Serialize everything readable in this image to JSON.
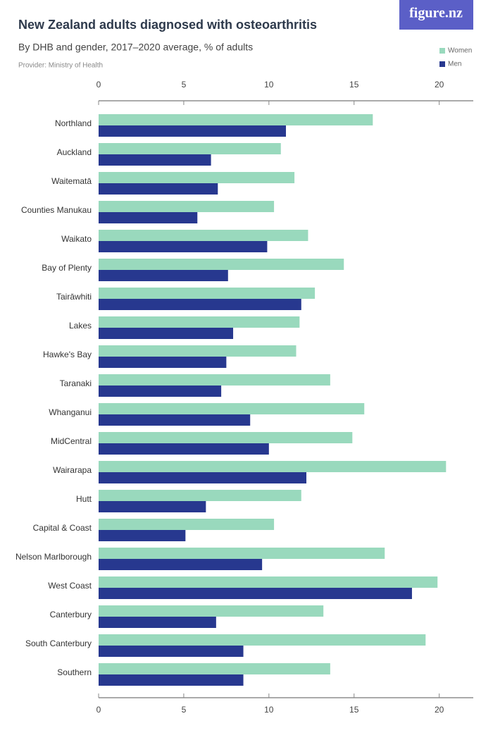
{
  "chart_data": {
    "type": "bar",
    "orientation": "horizontal",
    "title": "New Zealand adults diagnosed with osteoarthritis",
    "subtitle": "By DHB and gender, 2017–2020 average, % of adults",
    "provider": "Provider: Ministry of Health",
    "logo": "figure.nz",
    "categories": [
      "Northland",
      "Auckland",
      "Waitematā",
      "Counties Manukau",
      "Waikato",
      "Bay of Plenty",
      "Tairāwhiti",
      "Lakes",
      "Hawke's Bay",
      "Taranaki",
      "Whanganui",
      "MidCentral",
      "Wairarapa",
      "Hutt",
      "Capital & Coast",
      "Nelson Marlborough",
      "West Coast",
      "Canterbury",
      "South Canterbury",
      "Southern"
    ],
    "series": [
      {
        "name": "Women",
        "color": "#99d9bd",
        "values": [
          16.1,
          10.7,
          11.5,
          10.3,
          12.3,
          14.4,
          12.7,
          11.8,
          11.6,
          13.6,
          15.6,
          14.9,
          20.4,
          11.9,
          10.3,
          16.8,
          19.9,
          13.2,
          19.2,
          13.6
        ]
      },
      {
        "name": "Men",
        "color": "#27388f",
        "values": [
          11.0,
          6.6,
          7.0,
          5.8,
          9.9,
          7.6,
          11.9,
          7.9,
          7.5,
          7.2,
          8.9,
          10.0,
          12.2,
          6.3,
          5.1,
          9.6,
          18.4,
          6.9,
          8.5,
          8.5
        ]
      }
    ],
    "xlim": [
      0,
      22
    ],
    "xticks": [
      0,
      5,
      10,
      15,
      20
    ],
    "legend": "top-right"
  }
}
